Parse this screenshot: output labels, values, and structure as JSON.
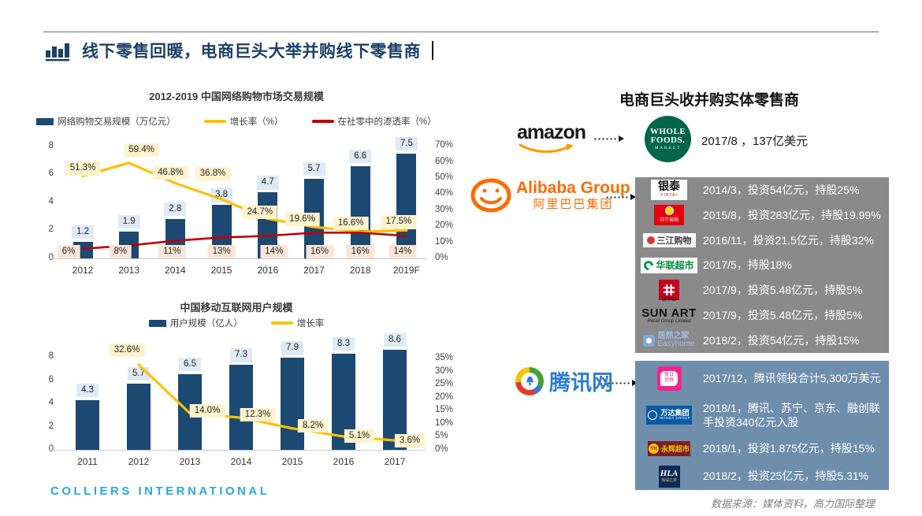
{
  "slide": {
    "title": "线下零售回暖，电商巨头大举并购线下零售商"
  },
  "chart_data": [
    {
      "type": "bar",
      "subtype": "bar+line combo",
      "title": "2012-2019 中国网络购物市场交易规模",
      "categories": [
        "2012",
        "2013",
        "2014",
        "2015",
        "2016",
        "2017",
        "2018",
        "2019F"
      ],
      "series": [
        {
          "name": "网络购物交易规模（万亿元）",
          "type": "bar",
          "color": "#1B4972",
          "values": [
            1.2,
            1.9,
            2.8,
            3.8,
            4.7,
            5.7,
            6.6,
            7.5
          ]
        },
        {
          "name": "增长率（%）",
          "type": "line",
          "color": "#FFC000",
          "values": [
            51.3,
            59.4,
            46.8,
            36.8,
            24.7,
            19.6,
            16.6,
            17.5
          ],
          "labels": [
            "51.3%",
            "59.4%",
            "46.8%",
            "36.8%",
            "24.7%",
            "19.6%",
            "16.6%",
            "17.5%"
          ]
        },
        {
          "name": "在社零中的渗透率（%）",
          "type": "line",
          "color": "#C00000",
          "values": [
            6,
            8,
            11,
            13,
            14,
            16,
            16,
            14
          ],
          "labels": [
            "6%",
            "8%",
            "11%",
            "13%",
            "14%",
            "16%",
            "16%",
            "14%"
          ]
        }
      ],
      "left_axis": {
        "ticks": [
          "0",
          "2",
          "4",
          "6",
          "8"
        ],
        "max": 8
      },
      "right_axis": {
        "ticks": [
          "0%",
          "10%",
          "20%",
          "30%",
          "40%",
          "50%",
          "60%",
          "70%"
        ],
        "max": 70
      },
      "grid": false,
      "legend_position": "top"
    },
    {
      "type": "bar",
      "subtype": "bar+line combo",
      "title": "中国移动互联网用户规模",
      "categories": [
        "2011",
        "2012",
        "2013",
        "2014",
        "2015",
        "2016",
        "2017"
      ],
      "series": [
        {
          "name": "用户规模（亿人）",
          "type": "bar",
          "color": "#1B4972",
          "values": [
            4.3,
            5.7,
            6.5,
            7.3,
            7.9,
            8.3,
            8.6
          ]
        },
        {
          "name": "增长率",
          "type": "line",
          "color": "#FFC000",
          "values": [
            null,
            32.6,
            14.0,
            12.3,
            8.2,
            5.1,
            3.6
          ],
          "labels": [
            null,
            "32.6%",
            "14.0%",
            "12.3%",
            "8.2%",
            "5.1%",
            "3.6%"
          ]
        }
      ],
      "left_axis": {
        "ticks": [
          "0",
          "2",
          "4",
          "6",
          "8"
        ],
        "max": 8
      },
      "right_axis": {
        "ticks": [
          "0%",
          "5%",
          "10%",
          "15%",
          "20%",
          "25%",
          "30%",
          "35%"
        ],
        "max": 35
      },
      "grid": false,
      "legend_position": "top"
    }
  ],
  "right_panel": {
    "header": "电商巨头收并购实体零售商",
    "amazon": {
      "logo_text": "amazon",
      "target": {
        "line1": "WHOLE",
        "line2": "FOODS.",
        "line3": "MARKET"
      },
      "deal": "2017/8 ，137亿美元"
    },
    "alibaba": {
      "logo_en": "Alibaba Group",
      "logo_cn": "阿里巴巴集团",
      "panel_color": "#8A8A8A",
      "deals": [
        {
          "company": "银泰",
          "company_sub": "YINTAI",
          "text": "2014/3，投资54亿元，持股25%"
        },
        {
          "company": "苏宁易购",
          "text": "2015/8，投资283亿元，持股19.99%"
        },
        {
          "company": "三江购物",
          "text": "2016/11，投资21.5亿元，持股32%"
        },
        {
          "company": "华联超市",
          "text": "2017/5，持股18%"
        },
        {
          "company": "新华都",
          "text": "2017/9，投资5.48亿元，持股5%"
        },
        {
          "company": "SUN ART",
          "company_sub": "Retail Group Limited",
          "text": "2017/9，投资5.48亿元，持股5%"
        },
        {
          "company": "居然之家",
          "company_sub": "Easyhome",
          "text": "2018/2，投资54亿元，持股15%"
        }
      ]
    },
    "tencent": {
      "logo_text": "腾讯网",
      "panel_color": "#6E8EAC",
      "deals": [
        {
          "company": "每日优鲜",
          "text": "2017/12，腾讯领投合计5,300万美元"
        },
        {
          "company": "万达集团",
          "company_sub": "WANDA GROUP",
          "text": "2018/1，腾讯、苏宁、京东、融创联手投资340亿元入股"
        },
        {
          "company": "永辉超市",
          "company_abbr": "YH",
          "text": "2018/1，投资1.875亿元，持股15%"
        },
        {
          "company": "HLA",
          "company_sub": "海澜之家",
          "text": "2018/2，投资25亿元，持股5.31%"
        }
      ]
    }
  },
  "footer": {
    "brand": "COLLIERS INTERNATIONAL",
    "source": "数据来源：媒体资料，高力国际整理"
  }
}
